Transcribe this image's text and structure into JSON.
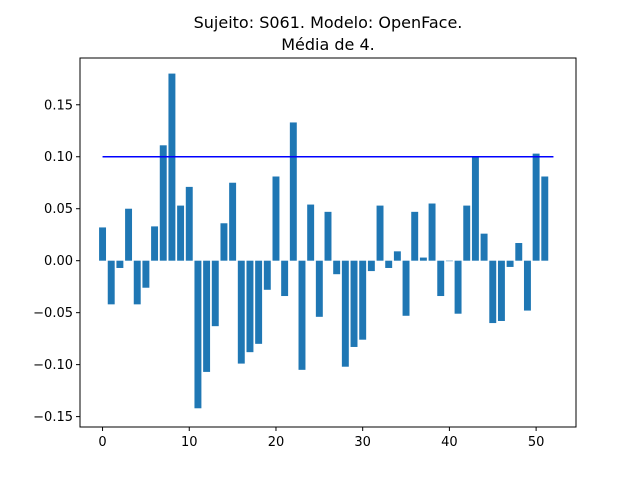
{
  "chart_data": {
    "type": "bar",
    "title_lines": [
      "Sujeito: S061. Modelo: OpenFace.",
      "Média de 4."
    ],
    "xlabel": "",
    "ylabel": "",
    "xlim": [
      -2.6,
      54.6
    ],
    "ylim": [
      -0.16,
      0.195
    ],
    "x_ticks": [
      0,
      10,
      20,
      30,
      40,
      50
    ],
    "y_ticks": [
      -0.15,
      -0.1,
      -0.05,
      0.0,
      0.05,
      0.1,
      0.15
    ],
    "y_tick_labels": [
      "−0.15",
      "−0.10",
      "−0.05",
      "0.00",
      "0.05",
      "0.10",
      "0.15"
    ],
    "grid": false,
    "bar_color": "#1f77b4",
    "x": [
      0,
      1,
      2,
      3,
      4,
      5,
      6,
      7,
      8,
      9,
      10,
      11,
      12,
      13,
      14,
      15,
      16,
      17,
      18,
      19,
      20,
      21,
      22,
      23,
      24,
      25,
      26,
      27,
      28,
      29,
      30,
      31,
      32,
      33,
      34,
      35,
      36,
      37,
      38,
      39,
      40,
      41,
      42,
      43,
      44,
      45,
      46,
      47,
      48,
      49,
      50,
      51
    ],
    "values": [
      0.032,
      -0.042,
      -0.007,
      0.05,
      -0.042,
      -0.026,
      0.033,
      0.111,
      0.18,
      0.053,
      0.071,
      -0.142,
      -0.107,
      -0.063,
      0.036,
      0.075,
      -0.099,
      -0.088,
      -0.08,
      -0.028,
      0.081,
      -0.034,
      0.133,
      -0.105,
      0.054,
      -0.054,
      0.047,
      -0.013,
      -0.102,
      -0.083,
      -0.076,
      -0.01,
      0.053,
      -0.007,
      0.009,
      -0.053,
      0.047,
      0.003,
      0.055,
      -0.034,
      0.0,
      -0.051,
      0.053,
      0.1,
      0.026,
      -0.06,
      -0.058,
      -0.006,
      0.017,
      -0.048,
      0.103,
      0.081
    ],
    "reference_line": {
      "y": 0.1,
      "x_from": 0,
      "x_to": 52,
      "color": "#0000ff"
    }
  }
}
